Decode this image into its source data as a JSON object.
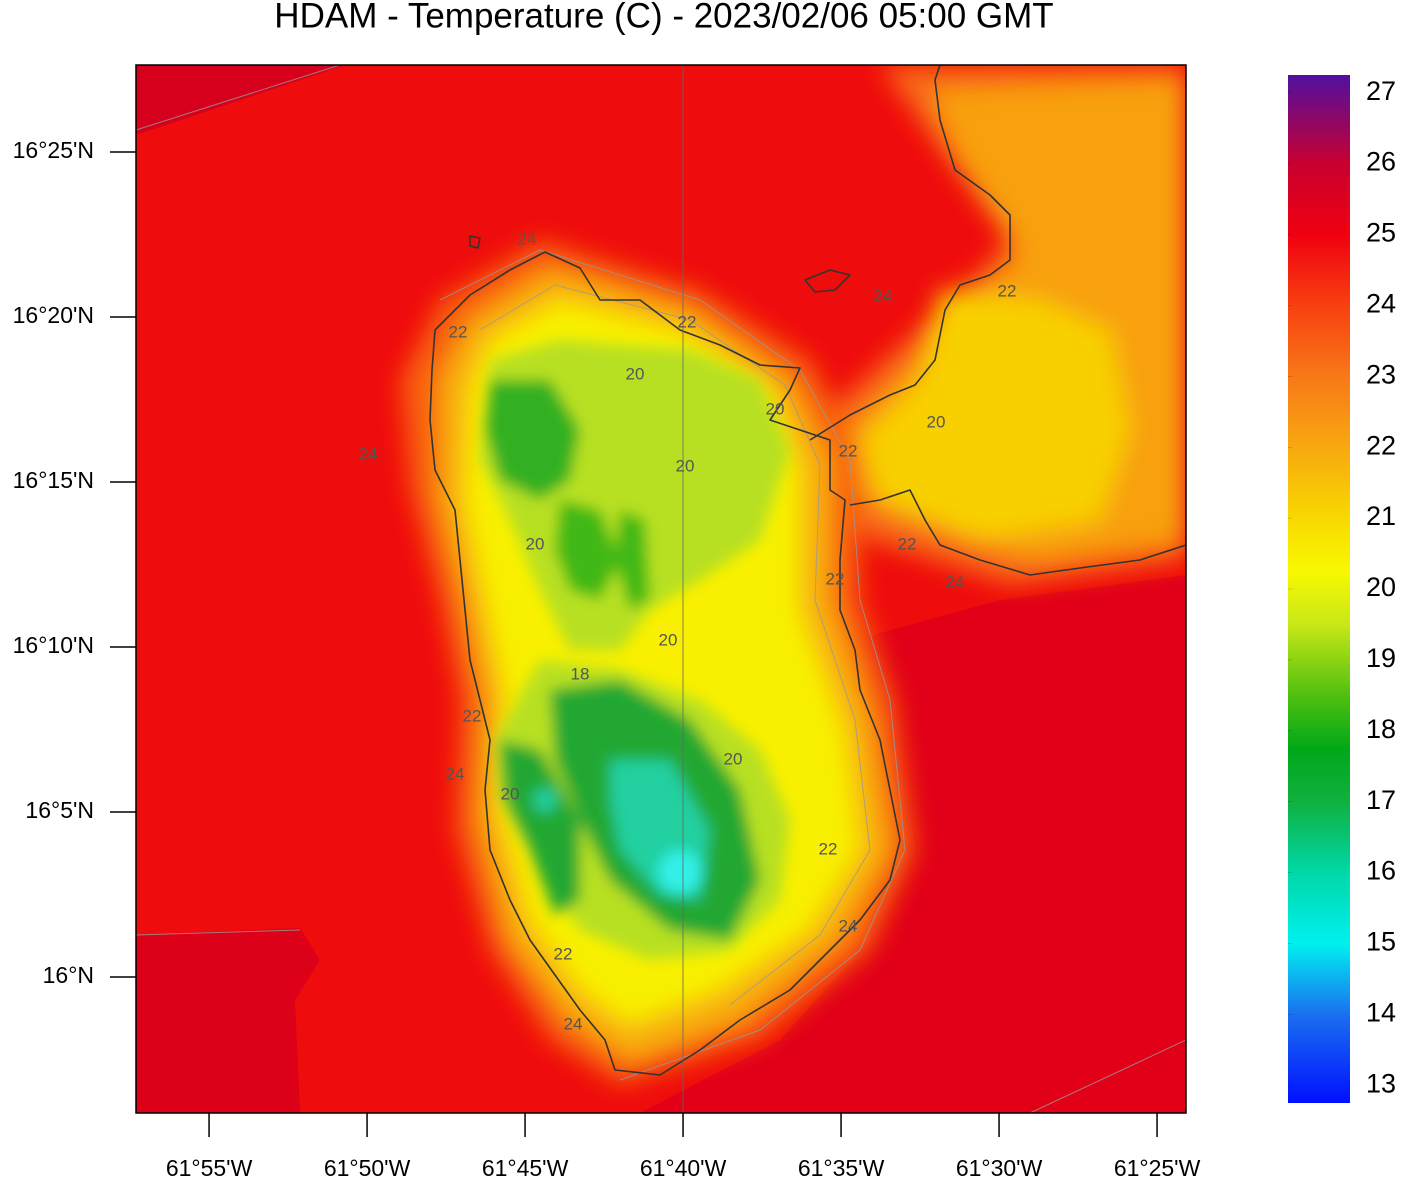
{
  "chart_data": {
    "type": "contour-map",
    "title": "HDAM - Temperature (C)  -  2023/02/06  05:00 GMT",
    "xlim": [
      -61.9552,
      -61.4014
    ],
    "ylim": [
      15.9313,
      16.4606
    ],
    "xticks": [
      {
        "value": -61.916667,
        "label": "61°55'W"
      },
      {
        "value": -61.833333,
        "label": "61°50'W"
      },
      {
        "value": -61.75,
        "label": "61°45'W"
      },
      {
        "value": -61.666667,
        "label": "61°40'W"
      },
      {
        "value": -61.583333,
        "label": "61°35'W"
      },
      {
        "value": -61.5,
        "label": "61°30'W"
      },
      {
        "value": -61.416667,
        "label": "61°25'W"
      }
    ],
    "yticks": [
      {
        "value": 16.416667,
        "label": "16°25'N"
      },
      {
        "value": 16.333333,
        "label": "16°20'N"
      },
      {
        "value": 16.25,
        "label": "16°15'N"
      },
      {
        "value": 16.166667,
        "label": "16°10'N"
      },
      {
        "value": 16.083333,
        "label": "16°5'N"
      },
      {
        "value": 16.0,
        "label": "16°N"
      }
    ],
    "colorbar": {
      "lim": [
        12.75,
        27.25
      ],
      "ticks": [
        13,
        14,
        15,
        16,
        17,
        18,
        19,
        20,
        21,
        22,
        23,
        24,
        25,
        26,
        27
      ],
      "color_stops": [
        {
          "value": 12.75,
          "color": "#0010ff"
        },
        {
          "value": 14,
          "color": "#1a70f0"
        },
        {
          "value": 15,
          "color": "#00f0f0"
        },
        {
          "value": 16,
          "color": "#00d8a8"
        },
        {
          "value": 17,
          "color": "#10b040"
        },
        {
          "value": 17.75,
          "color": "#00a818"
        },
        {
          "value": 18.5,
          "color": "#50c010"
        },
        {
          "value": 19.5,
          "color": "#c8e818"
        },
        {
          "value": 20.25,
          "color": "#f8f800"
        },
        {
          "value": 21,
          "color": "#f8d800"
        },
        {
          "value": 22,
          "color": "#f8a810"
        },
        {
          "value": 23,
          "color": "#f87818"
        },
        {
          "value": 24,
          "color": "#f84010"
        },
        {
          "value": 25,
          "color": "#f00010"
        },
        {
          "value": 26,
          "color": "#c80030"
        },
        {
          "value": 27.25,
          "color": "#5010a0"
        }
      ]
    },
    "contour_labels": [
      24,
      22,
      24,
      20,
      22,
      20,
      20,
      22,
      24,
      22,
      20,
      22,
      24,
      22,
      20,
      20,
      18,
      22,
      24,
      20,
      20,
      22,
      24,
      22,
      24
    ]
  }
}
